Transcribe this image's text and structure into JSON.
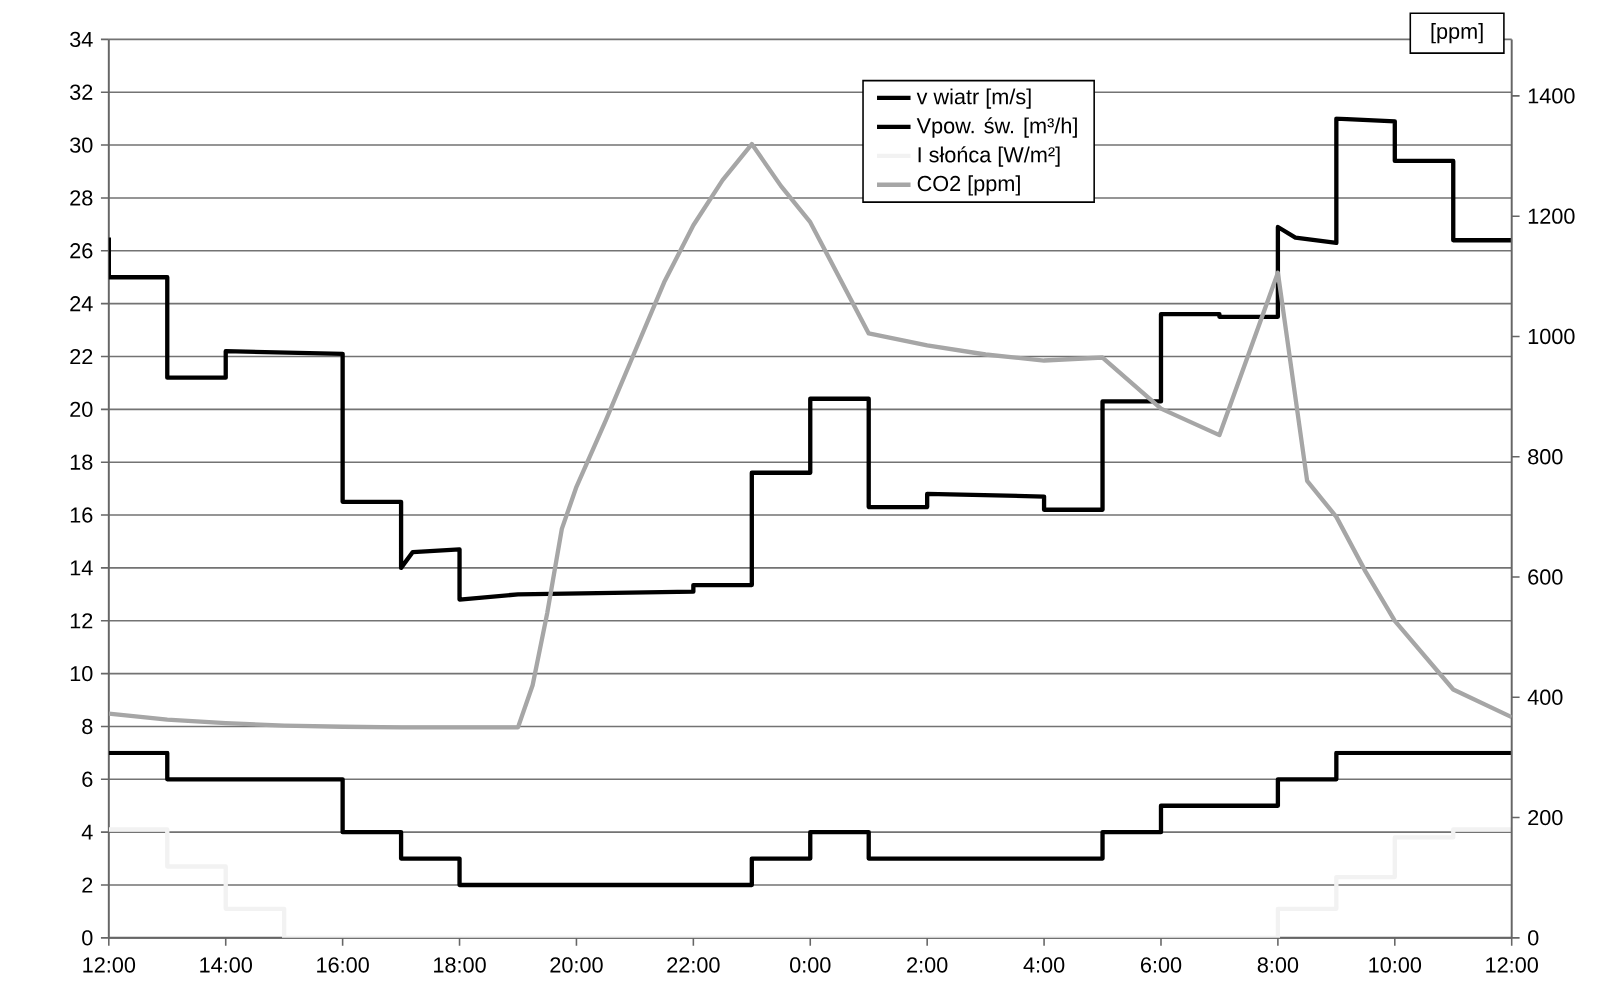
{
  "chart_data": {
    "type": "line",
    "y2label": "[ppm]",
    "xlim": [
      "2000-01-01T12:00",
      "2000-01-02T12:00"
    ],
    "xticks": [
      {
        "value": "2000-01-01T12:00",
        "label": "12:00"
      },
      {
        "value": "2000-01-01T14:00",
        "label": "14:00"
      },
      {
        "value": "2000-01-01T16:00",
        "label": "16:00"
      },
      {
        "value": "2000-01-01T18:00",
        "label": "18:00"
      },
      {
        "value": "2000-01-01T20:00",
        "label": "20:00"
      },
      {
        "value": "2000-01-01T22:00",
        "label": "22:00"
      },
      {
        "value": "2000-01-02T00:00",
        "label": "0:00"
      },
      {
        "value": "2000-01-02T02:00",
        "label": "2:00"
      },
      {
        "value": "2000-01-02T04:00",
        "label": "4:00"
      },
      {
        "value": "2000-01-02T06:00",
        "label": "6:00"
      },
      {
        "value": "2000-01-02T08:00",
        "label": "8:00"
      },
      {
        "value": "2000-01-02T10:00",
        "label": "10:00"
      },
      {
        "value": "2000-01-02T12:00",
        "label": "12:00"
      }
    ],
    "ylim": [
      0,
      34
    ],
    "yticks": [
      0,
      2,
      4,
      6,
      8,
      10,
      12,
      14,
      16,
      18,
      20,
      22,
      24,
      26,
      28,
      30,
      32,
      34
    ],
    "y2lim": [
      0,
      1494
    ],
    "y2ticks": [
      0,
      200,
      400,
      600,
      800,
      1000,
      1200,
      1400
    ],
    "grid": "y",
    "legend": "top",
    "series": [
      {
        "name": "v wiatr [m/s]",
        "type": "step",
        "color": "#000000",
        "x": [
          "2000-01-01T12:00",
          "2000-01-01T13:00",
          "2000-01-01T16:00",
          "2000-01-01T17:00",
          "2000-01-01T18:00",
          "2000-01-01T23:00",
          "2000-01-02T00:00",
          "2000-01-02T01:00",
          "2000-01-02T05:00",
          "2000-01-02T06:00",
          "2000-01-02T08:00",
          "2000-01-02T09:00",
          "2000-01-02T12:00"
        ],
        "values": [
          7,
          6,
          4,
          3,
          2,
          3,
          4,
          3,
          4,
          5,
          6,
          7,
          7
        ]
      },
      {
        "name": "Vpow. św.  [m³/h]",
        "color": "#000000",
        "x": [
          "2000-01-01T12:00",
          "2000-01-01T12:00",
          "2000-01-01T13:00",
          "2000-01-01T13:00",
          "2000-01-01T14:00",
          "2000-01-01T14:00",
          "2000-01-01T16:00",
          "2000-01-01T16:00",
          "2000-01-01T17:00",
          "2000-01-01T17:00",
          "2000-01-01T17:12",
          "2000-01-01T18:00",
          "2000-01-01T18:00",
          "2000-01-01T19:00",
          "2000-01-01T22:00",
          "2000-01-01T22:00",
          "2000-01-01T23:00",
          "2000-01-01T23:00",
          "2000-01-02T00:00",
          "2000-01-02T00:00",
          "2000-01-02T01:00",
          "2000-01-02T01:00",
          "2000-01-02T02:00",
          "2000-01-02T02:00",
          "2000-01-02T04:00",
          "2000-01-02T04:00",
          "2000-01-02T05:00",
          "2000-01-02T05:00",
          "2000-01-02T06:00",
          "2000-01-02T06:00",
          "2000-01-02T07:00",
          "2000-01-02T07:00",
          "2000-01-02T08:00",
          "2000-01-02T08:00",
          "2000-01-02T08:18",
          "2000-01-02T09:00",
          "2000-01-02T09:00",
          "2000-01-02T10:00",
          "2000-01-02T10:00",
          "2000-01-02T11:00",
          "2000-01-02T11:00",
          "2000-01-02T12:00"
        ],
        "values": [
          26.5,
          25,
          25,
          21.2,
          21.2,
          22.2,
          22.1,
          16.5,
          16.5,
          14,
          14.6,
          14.7,
          12.8,
          13.0,
          13.1,
          13.35,
          13.35,
          17.6,
          17.6,
          20.4,
          20.4,
          16.3,
          16.3,
          16.8,
          16.7,
          16.2,
          16.2,
          20.3,
          20.3,
          23.6,
          23.6,
          23.5,
          23.5,
          26.9,
          26.5,
          26.3,
          31.0,
          30.9,
          29.4,
          29.4,
          26.4,
          26.4
        ]
      },
      {
        "name": "I słońca [W/m²]",
        "type": "step",
        "color": "#f2f2f2",
        "x": [
          "2000-01-01T12:00",
          "2000-01-01T13:00",
          "2000-01-01T14:00",
          "2000-01-01T15:00",
          "2000-01-02T08:00",
          "2000-01-02T09:00",
          "2000-01-02T10:00",
          "2000-01-02T11:00",
          "2000-01-02T12:00"
        ],
        "values": [
          4.1,
          2.7,
          1.1,
          0,
          1.1,
          2.3,
          3.8,
          4.1,
          4.1
        ]
      },
      {
        "name": "CO2 [ppm]",
        "color": "#a6a6a6",
        "axis": "y2",
        "x": [
          "2000-01-01T12:00",
          "2000-01-01T13:00",
          "2000-01-01T14:00",
          "2000-01-01T15:00",
          "2000-01-01T16:00",
          "2000-01-01T17:00",
          "2000-01-01T18:00",
          "2000-01-01T19:00",
          "2000-01-01T19:15",
          "2000-01-01T19:30",
          "2000-01-01T19:45",
          "2000-01-01T20:00",
          "2000-01-01T20:30",
          "2000-01-01T21:00",
          "2000-01-01T21:30",
          "2000-01-01T22:00",
          "2000-01-01T22:30",
          "2000-01-01T23:00",
          "2000-01-01T23:30",
          "2000-01-02T00:00",
          "2000-01-02T01:00",
          "2000-01-02T02:00",
          "2000-01-02T03:00",
          "2000-01-02T04:00",
          "2000-01-02T05:00",
          "2000-01-02T06:00",
          "2000-01-02T07:00",
          "2000-01-02T08:00",
          "2000-01-02T08:30",
          "2000-01-02T09:00",
          "2000-01-02T09:30",
          "2000-01-02T10:00",
          "2000-01-02T11:00",
          "2000-01-02T12:00"
        ],
        "values": [
          373,
          363,
          357,
          353,
          351,
          350,
          350,
          350,
          420,
          540,
          680,
          750,
          860,
          975,
          1090,
          1185,
          1260,
          1320,
          1250,
          1190,
          1005,
          985,
          970,
          960,
          965,
          880,
          836,
          1106,
          760,
          700,
          609,
          527,
          413,
          367
        ]
      }
    ]
  }
}
